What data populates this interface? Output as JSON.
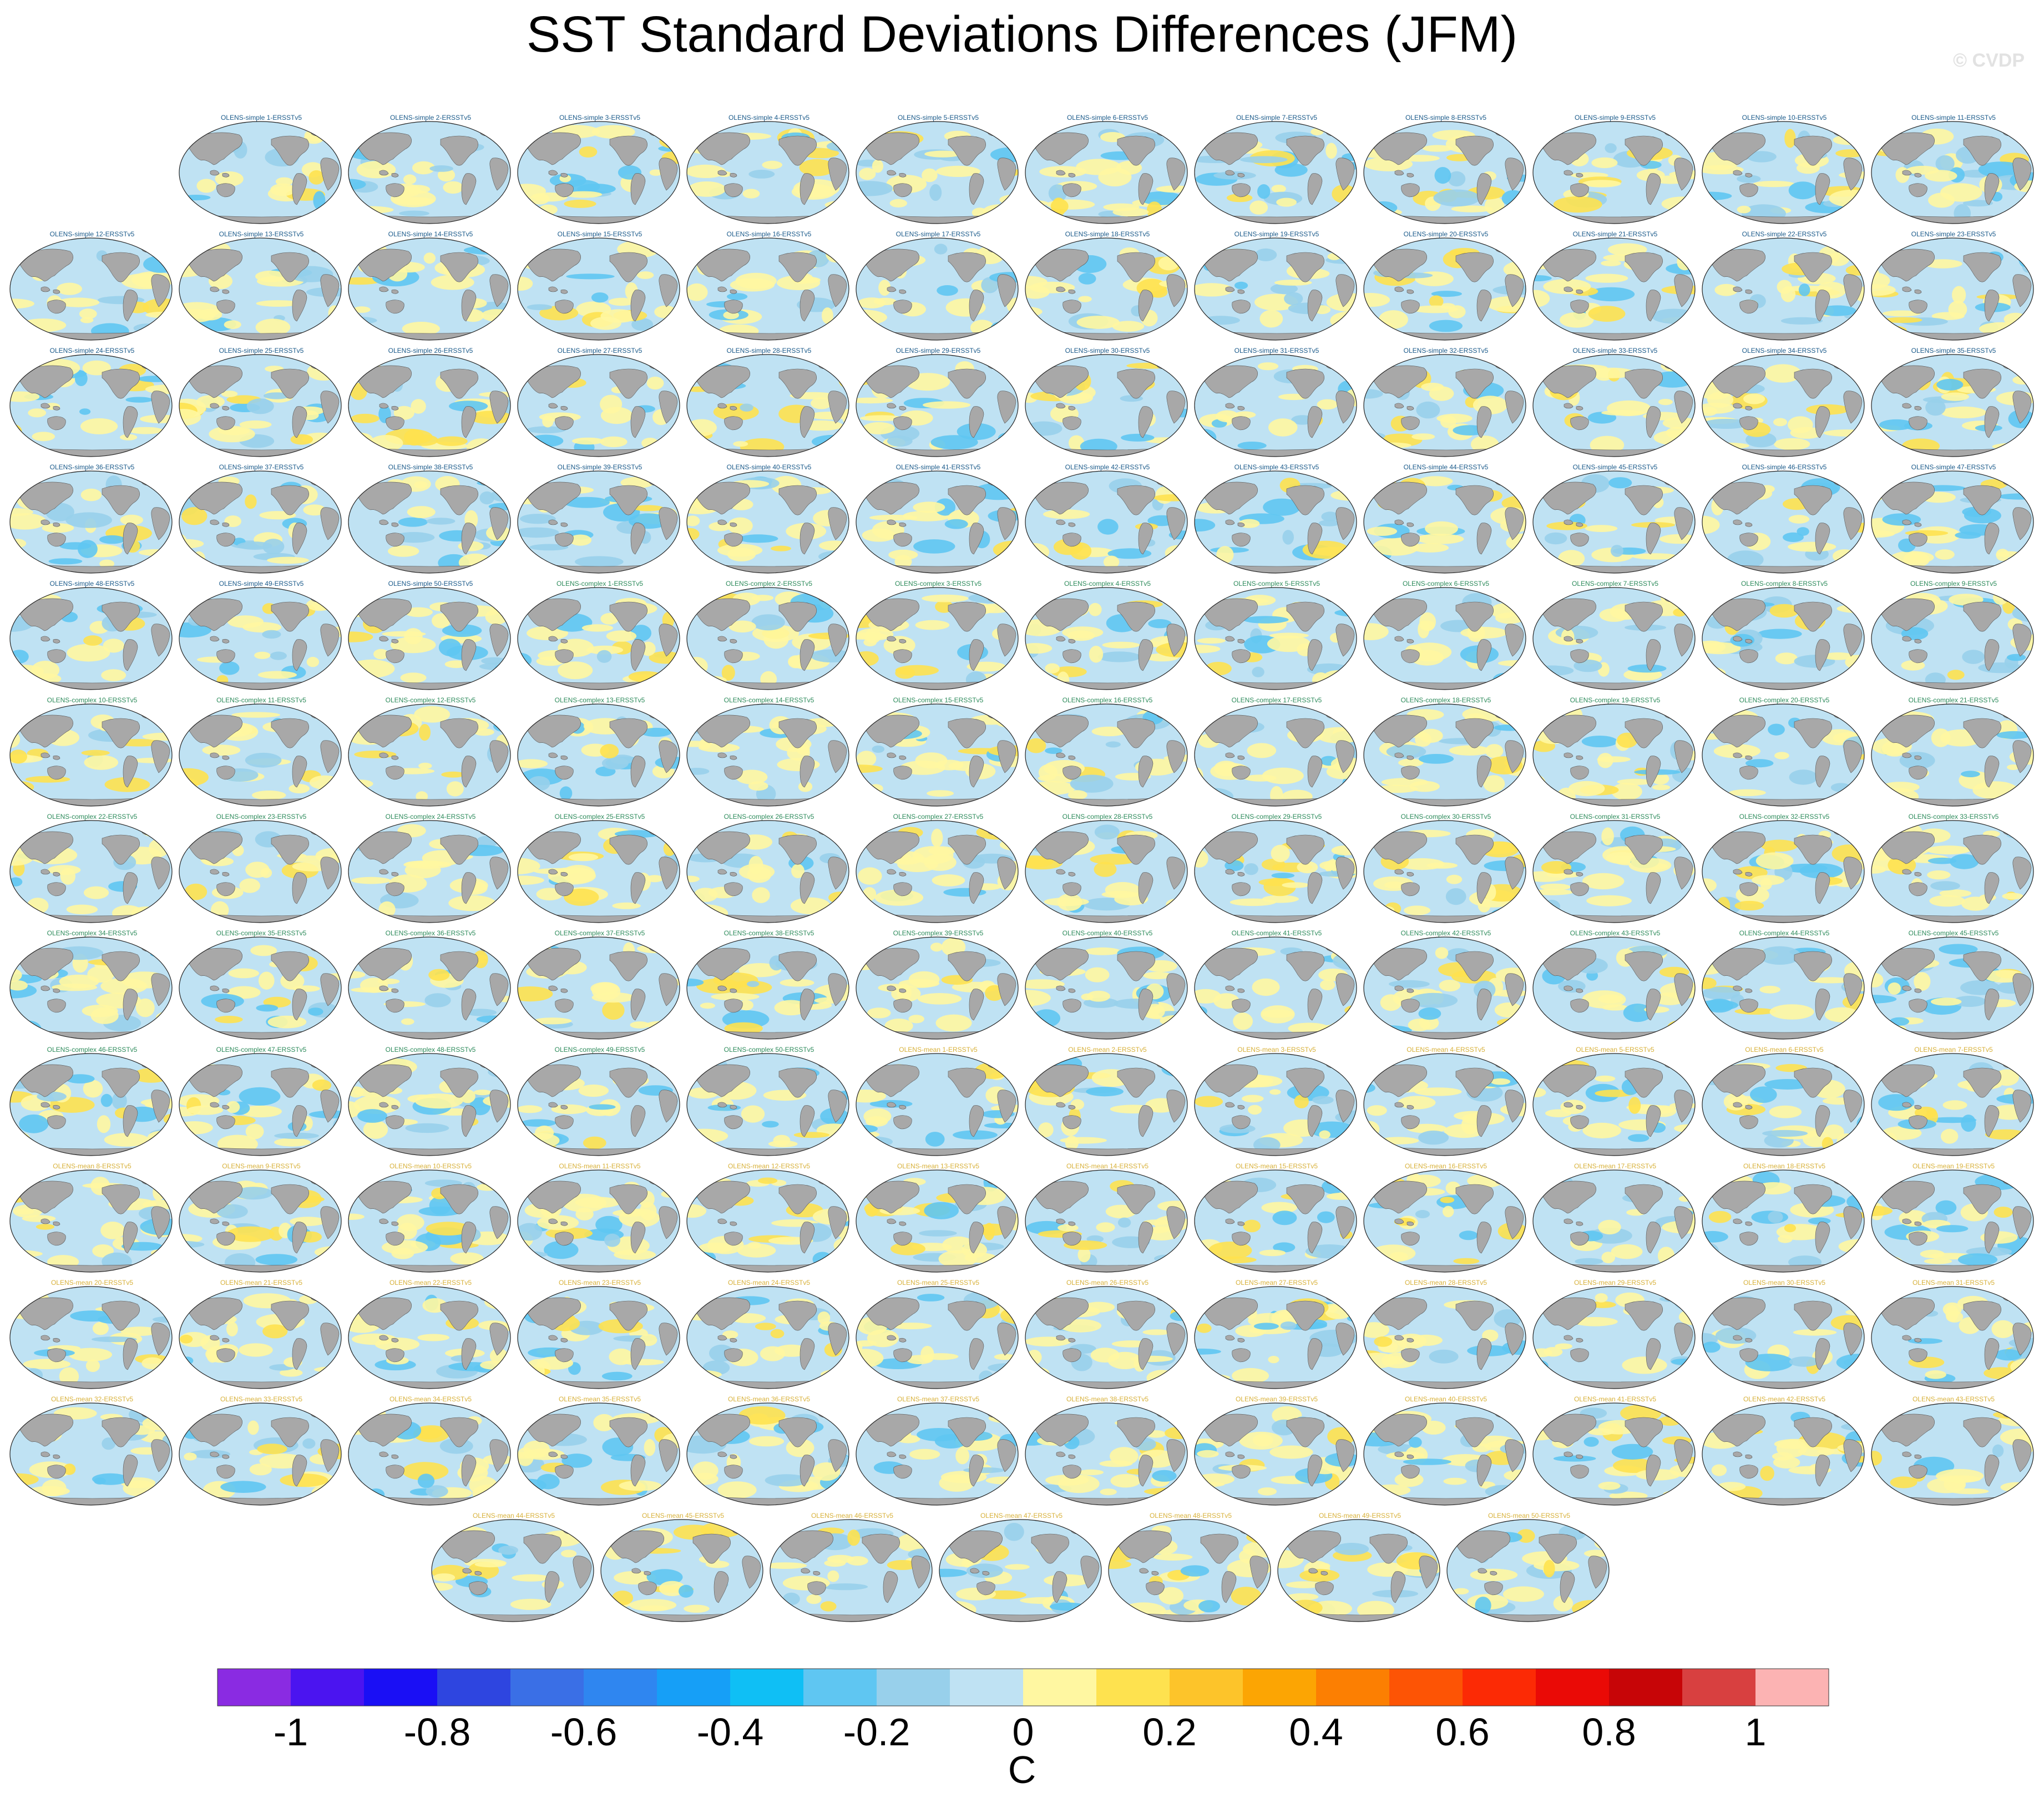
{
  "title": "SST Standard Deviations Differences (JFM)",
  "watermark": "© CVDP",
  "chart_data": {
    "type": "heatmap",
    "title": "SST Standard Deviations Differences (JFM)",
    "description_of_panels": "Global maps, one per ensemble member minus observations",
    "panels": [
      "OLENS-simple 1-ERSSTv5",
      "OLENS-simple 2-ERSSTv5",
      "OLENS-simple 3-ERSSTv5",
      "OLENS-simple 4-ERSSTv5",
      "OLENS-simple 5-ERSSTv5",
      "OLENS-simple 6-ERSSTv5",
      "OLENS-simple 7-ERSSTv5",
      "OLENS-simple 8-ERSSTv5",
      "OLENS-simple 9-ERSSTv5",
      "OLENS-simple 10-ERSSTv5",
      "OLENS-simple 11-ERSSTv5",
      "OLENS-simple 12-ERSSTv5",
      "OLENS-simple 13-ERSSTv5",
      "OLENS-simple 14-ERSSTv5",
      "OLENS-simple 15-ERSSTv5",
      "OLENS-simple 16-ERSSTv5",
      "OLENS-simple 17-ERSSTv5",
      "OLENS-simple 18-ERSSTv5",
      "OLENS-simple 19-ERSSTv5",
      "OLENS-simple 20-ERSSTv5",
      "OLENS-simple 21-ERSSTv5",
      "OLENS-simple 22-ERSSTv5",
      "OLENS-simple 23-ERSSTv5",
      "OLENS-simple 24-ERSSTv5",
      "OLENS-simple 25-ERSSTv5",
      "OLENS-simple 26-ERSSTv5",
      "OLENS-simple 27-ERSSTv5",
      "OLENS-simple 28-ERSSTv5",
      "OLENS-simple 29-ERSSTv5",
      "OLENS-simple 30-ERSSTv5",
      "OLENS-simple 31-ERSSTv5",
      "OLENS-simple 32-ERSSTv5",
      "OLENS-simple 33-ERSSTv5",
      "OLENS-simple 34-ERSSTv5",
      "OLENS-simple 35-ERSSTv5",
      "OLENS-simple 36-ERSSTv5",
      "OLENS-simple 37-ERSSTv5",
      "OLENS-simple 38-ERSSTv5",
      "OLENS-simple 39-ERSSTv5",
      "OLENS-simple 40-ERSSTv5",
      "OLENS-simple 41-ERSSTv5",
      "OLENS-simple 42-ERSSTv5",
      "OLENS-simple 43-ERSSTv5",
      "OLENS-simple 44-ERSSTv5",
      "OLENS-simple 45-ERSSTv5",
      "OLENS-simple 46-ERSSTv5",
      "OLENS-simple 47-ERSSTv5",
      "OLENS-simple 48-ERSSTv5",
      "OLENS-simple 49-ERSSTv5",
      "OLENS-simple 50-ERSSTv5",
      "OLENS-complex 1-ERSSTv5",
      "OLENS-complex 2-ERSSTv5",
      "OLENS-complex 3-ERSSTv5",
      "OLENS-complex 4-ERSSTv5",
      "OLENS-complex 5-ERSSTv5",
      "OLENS-complex 6-ERSSTv5",
      "OLENS-complex 7-ERSSTv5",
      "OLENS-complex 8-ERSSTv5",
      "OLENS-complex 9-ERSSTv5",
      "OLENS-complex 10-ERSSTv5",
      "OLENS-complex 11-ERSSTv5",
      "OLENS-complex 12-ERSSTv5",
      "OLENS-complex 13-ERSSTv5",
      "OLENS-complex 14-ERSSTv5",
      "OLENS-complex 15-ERSSTv5",
      "OLENS-complex 16-ERSSTv5",
      "OLENS-complex 17-ERSSTv5",
      "OLENS-complex 18-ERSSTv5",
      "OLENS-complex 19-ERSSTv5",
      "OLENS-complex 20-ERSSTv5",
      "OLENS-complex 21-ERSSTv5",
      "OLENS-complex 22-ERSSTv5",
      "OLENS-complex 23-ERSSTv5",
      "OLENS-complex 24-ERSSTv5",
      "OLENS-complex 25-ERSSTv5",
      "OLENS-complex 26-ERSSTv5",
      "OLENS-complex 27-ERSSTv5",
      "OLENS-complex 28-ERSSTv5",
      "OLENS-complex 29-ERSSTv5",
      "OLENS-complex 30-ERSSTv5",
      "OLENS-complex 31-ERSSTv5",
      "OLENS-complex 32-ERSSTv5",
      "OLENS-complex 33-ERSSTv5",
      "OLENS-complex 34-ERSSTv5",
      "OLENS-complex 35-ERSSTv5",
      "OLENS-complex 36-ERSSTv5",
      "OLENS-complex 37-ERSSTv5",
      "OLENS-complex 38-ERSSTv5",
      "OLENS-complex 39-ERSSTv5",
      "OLENS-complex 40-ERSSTv5",
      "OLENS-complex 41-ERSSTv5",
      "OLENS-complex 42-ERSSTv5",
      "OLENS-complex 43-ERSSTv5",
      "OLENS-complex 44-ERSSTv5",
      "OLENS-complex 45-ERSSTv5",
      "OLENS-complex 46-ERSSTv5",
      "OLENS-complex 47-ERSSTv5",
      "OLENS-complex 48-ERSSTv5",
      "OLENS-complex 49-ERSSTv5",
      "OLENS-complex 50-ERSSTv5",
      "OLENS-mean 1-ERSSTv5",
      "OLENS-mean 2-ERSSTv5",
      "OLENS-mean 3-ERSSTv5",
      "OLENS-mean 4-ERSSTv5",
      "OLENS-mean 5-ERSSTv5",
      "OLENS-mean 6-ERSSTv5",
      "OLENS-mean 7-ERSSTv5",
      "OLENS-mean 8-ERSSTv5",
      "OLENS-mean 9-ERSSTv5",
      "OLENS-mean 10-ERSSTv5",
      "OLENS-mean 11-ERSSTv5",
      "OLENS-mean 12-ERSSTv5",
      "OLENS-mean 13-ERSSTv5",
      "OLENS-mean 14-ERSSTv5",
      "OLENS-mean 15-ERSSTv5",
      "OLENS-mean 16-ERSSTv5",
      "OLENS-mean 17-ERSSTv5",
      "OLENS-mean 18-ERSSTv5",
      "OLENS-mean 19-ERSSTv5",
      "OLENS-mean 20-ERSSTv5",
      "OLENS-mean 21-ERSSTv5",
      "OLENS-mean 22-ERSSTv5",
      "OLENS-mean 23-ERSSTv5",
      "OLENS-mean 24-ERSSTv5",
      "OLENS-mean 25-ERSSTv5",
      "OLENS-mean 26-ERSSTv5",
      "OLENS-mean 27-ERSSTv5",
      "OLENS-mean 28-ERSSTv5",
      "OLENS-mean 29-ERSSTv5",
      "OLENS-mean 30-ERSSTv5",
      "OLENS-mean 31-ERSSTv5",
      "OLENS-mean 32-ERSSTv5",
      "OLENS-mean 33-ERSSTv5",
      "OLENS-mean 34-ERSSTv5",
      "OLENS-mean 35-ERSSTv5",
      "OLENS-mean 36-ERSSTv5",
      "OLENS-mean 37-ERSSTv5",
      "OLENS-mean 38-ERSSTv5",
      "OLENS-mean 39-ERSSTv5",
      "OLENS-mean 40-ERSSTv5",
      "OLENS-mean 41-ERSSTv5",
      "OLENS-mean 42-ERSSTv5",
      "OLENS-mean 43-ERSSTv5",
      "OLENS-mean 44-ERSSTv5",
      "OLENS-mean 45-ERSSTv5",
      "OLENS-mean 46-ERSSTv5",
      "OLENS-mean 47-ERSSTv5",
      "OLENS-mean 48-ERSSTv5",
      "OLENS-mean 49-ERSSTv5",
      "OLENS-mean 50-ERSSTv5"
    ],
    "title_colors": {
      "OLENS-simple": "#1a5a8a",
      "OLENS-complex": "#2d8b5b",
      "OLENS-mean": "#d8b13a"
    },
    "colorbar": {
      "label": "C",
      "range": [
        -1.1,
        1.1
      ],
      "ticks": [
        "-1",
        "-0.8",
        "-0.6",
        "-0.4",
        "-0.2",
        "0",
        "0.2",
        "0.4",
        "0.6",
        "0.8",
        "1"
      ],
      "tick_values": [
        -1,
        -0.8,
        -0.6,
        -0.4,
        -0.2,
        0,
        0.2,
        0.4,
        0.6,
        0.8,
        1
      ],
      "colors": [
        "#8a2be2",
        "#4b14f0",
        "#1a0ff5",
        "#2e45e0",
        "#3a6fe6",
        "#2f86f0",
        "#169ff7",
        "#0fbff5",
        "#5fc6f2",
        "#98d0eb",
        "#bfe2f3",
        "#fff7a1",
        "#fee24f",
        "#fdc42a",
        "#fca503",
        "#fc7f02",
        "#fd5405",
        "#fc2a05",
        "#ea0a06",
        "#c70507",
        "#d84040",
        "#fcb3b3"
      ]
    }
  }
}
